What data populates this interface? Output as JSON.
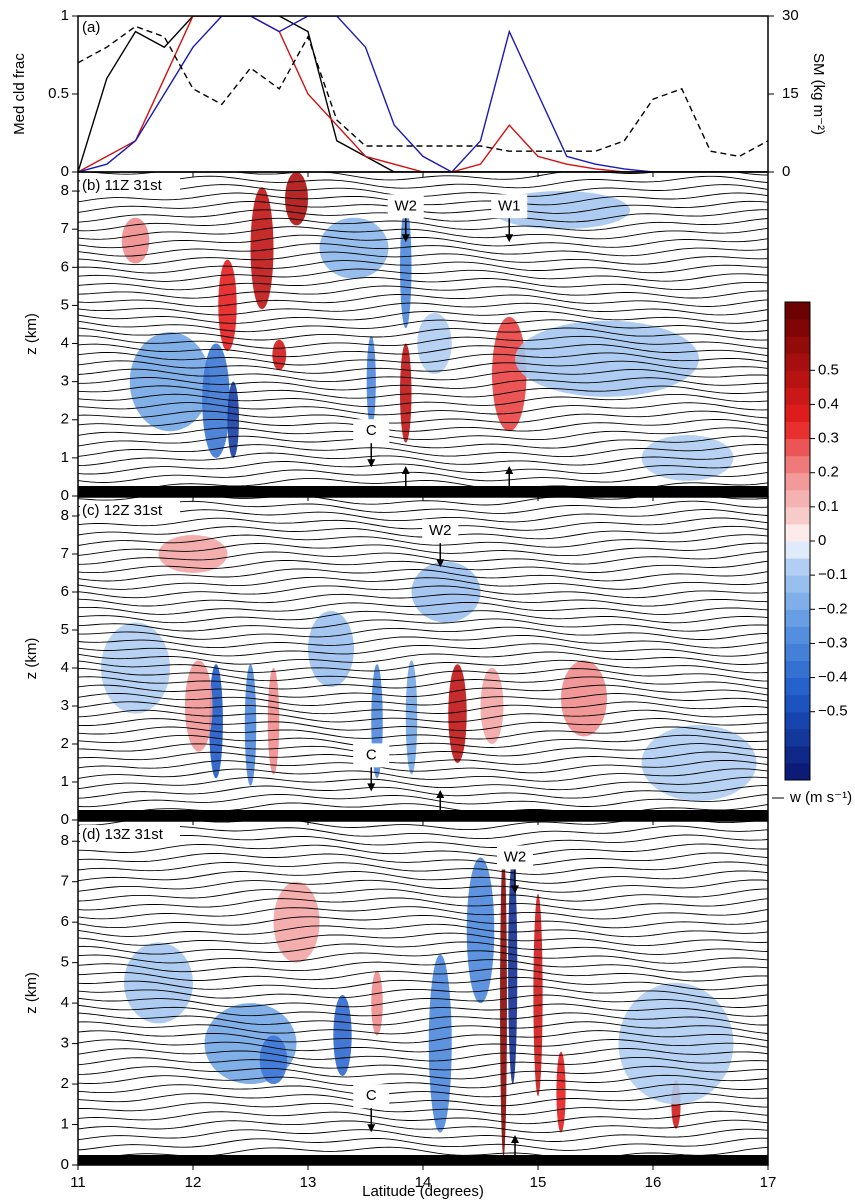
{
  "chart_data": [
    {
      "type": "line",
      "panel_label": "(a)",
      "y_label": "Med cld frac",
      "y2_label": "SM (kg m⁻²)",
      "x": [
        11,
        11.25,
        11.5,
        11.75,
        12,
        12.25,
        12.5,
        12.75,
        13,
        13.25,
        13.5,
        13.75,
        14,
        14.25,
        14.5,
        14.75,
        15,
        15.25,
        15.5,
        15.75,
        16,
        16.25,
        16.5,
        16.75,
        17
      ],
      "xlim": [
        11,
        17
      ],
      "ylim": [
        0,
        1
      ],
      "yticks": [
        0,
        0.5,
        1
      ],
      "y2lim": [
        0,
        30
      ],
      "y2ticks": [
        0,
        15,
        30
      ],
      "series": [
        {
          "color": "#000000",
          "values": [
            0,
            0.6,
            0.9,
            0.8,
            1,
            1,
            1,
            1,
            0.9,
            0.2,
            0.1,
            0,
            0,
            0,
            0,
            0,
            0,
            0,
            0,
            0,
            0,
            0,
            0,
            0,
            0
          ]
        },
        {
          "color": "#d01010",
          "values": [
            0,
            0.1,
            0.2,
            0.6,
            1,
            1,
            1,
            0.9,
            0.5,
            0.3,
            0.1,
            0.05,
            0,
            0,
            0.05,
            0.3,
            0.1,
            0.05,
            0.02,
            0,
            0,
            0,
            0,
            0,
            0
          ]
        },
        {
          "color": "#1a1ab8",
          "values": [
            0,
            0.05,
            0.2,
            0.5,
            0.8,
            1,
            1,
            0.9,
            1,
            1,
            0.8,
            0.3,
            0.1,
            0,
            0.2,
            0.9,
            0.5,
            0.1,
            0.05,
            0.02,
            0,
            0,
            0,
            0,
            0
          ]
        },
        {
          "color": "#000000",
          "dash": true,
          "axis": "y2",
          "values": [
            21,
            24,
            28,
            26,
            16,
            13,
            20,
            16,
            26,
            10,
            5,
            5,
            5,
            5,
            5,
            4,
            4,
            4,
            4,
            6,
            14,
            16,
            4,
            3,
            6
          ]
        }
      ]
    },
    {
      "type": "contour",
      "title": "(b) 11Z 31st",
      "y_label": "z (km)",
      "xlim": [
        11,
        17
      ],
      "ylim": [
        0,
        8.5
      ],
      "yticks": [
        0,
        1,
        2,
        3,
        4,
        5,
        6,
        7,
        8
      ],
      "annotations": [
        "W2",
        "W1",
        "C"
      ]
    },
    {
      "type": "contour",
      "title": "(c) 12Z 31st",
      "y_label": "z (km)",
      "xlim": [
        11,
        17
      ],
      "ylim": [
        0,
        8.5
      ],
      "yticks": [
        0,
        1,
        2,
        3,
        4,
        5,
        6,
        7,
        8
      ],
      "annotations": [
        "W2",
        "C"
      ]
    },
    {
      "type": "contour",
      "title": "(d) 13Z 31st",
      "y_label": "z (km)",
      "xlim": [
        11,
        17
      ],
      "ylim": [
        0,
        8.5
      ],
      "yticks": [
        0,
        1,
        2,
        3,
        4,
        5,
        6,
        7,
        8
      ],
      "annotations": [
        "W2",
        "C"
      ],
      "x_label": "Latitude (degrees)",
      "xticks": [
        11,
        12,
        13,
        14,
        15,
        16,
        17
      ]
    },
    {
      "type": "colorbar",
      "label": "w (m s⁻¹)",
      "clim": [
        -0.7,
        0.7
      ],
      "ticks": [
        {
          "value": -0.5,
          "label": "−0.5"
        },
        {
          "value": -0.4,
          "label": "−0.4"
        },
        {
          "value": -0.3,
          "label": "−0.3"
        },
        {
          "value": -0.2,
          "label": "−0.2"
        },
        {
          "value": -0.1,
          "label": "−0.1"
        },
        0,
        0.1,
        0.2,
        0.3,
        0.4,
        0.5
      ]
    }
  ]
}
